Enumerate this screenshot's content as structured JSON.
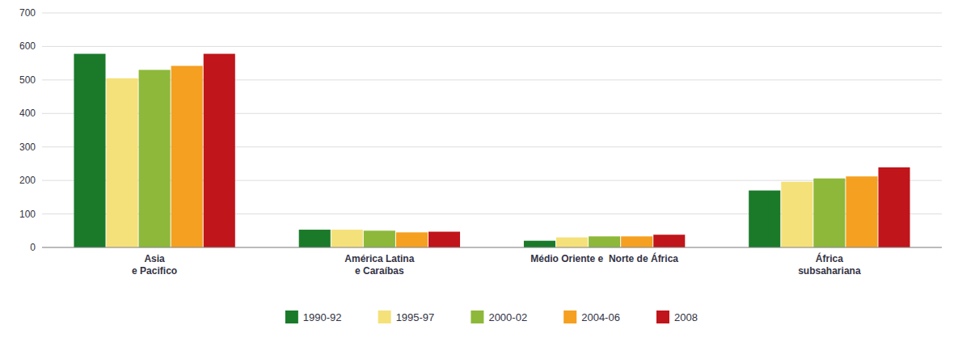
{
  "chart_data": {
    "type": "bar",
    "categories": [
      "Asia\ne Pacifico",
      "América Latina\ne Caraíbas",
      "Médio Oriente e  Norte de África",
      "África\nsubsahariana"
    ],
    "series": [
      {
        "name": "1990-92",
        "color": "#1a7a2a",
        "values": [
          578,
          53,
          20,
          170
        ]
      },
      {
        "name": "1995-97",
        "color": "#f5e17a",
        "values": [
          505,
          53,
          30,
          196
        ]
      },
      {
        "name": "2000-02",
        "color": "#8db83a",
        "values": [
          530,
          50,
          33,
          206
        ]
      },
      {
        "name": "2004-06",
        "color": "#f5a020",
        "values": [
          542,
          45,
          33,
          212
        ]
      },
      {
        "name": "2008",
        "color": "#c0151a",
        "values": [
          578,
          47,
          38,
          239
        ]
      }
    ],
    "ylim": [
      0,
      700
    ],
    "yticks": [
      0,
      100,
      200,
      300,
      400,
      500,
      600,
      700
    ],
    "grid": true,
    "legend": "bottom"
  }
}
